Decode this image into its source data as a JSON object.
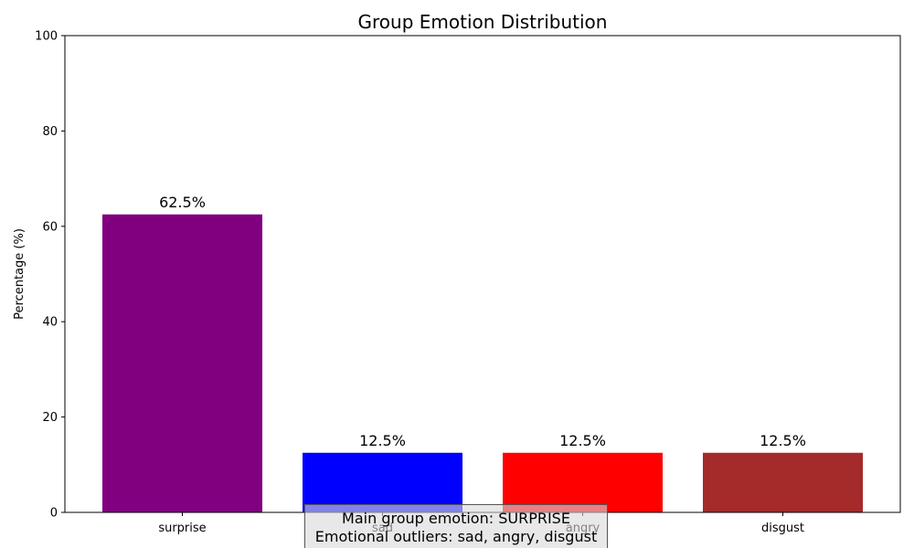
{
  "chart_data": {
    "type": "bar",
    "title": "Group Emotion Distribution",
    "xlabel": "",
    "ylabel": "Percentage (%)",
    "ylim": [
      0,
      100
    ],
    "yticks": [
      0,
      20,
      40,
      60,
      80,
      100
    ],
    "grid": false,
    "categories": [
      "surprise",
      "sad",
      "angry",
      "disgust"
    ],
    "values": [
      62.5,
      12.5,
      12.5,
      12.5
    ],
    "value_labels": [
      "62.5%",
      "12.5%",
      "12.5%",
      "12.5%"
    ],
    "colors": [
      "#800080",
      "#0000ff",
      "#ff0000",
      "#a52a2a"
    ]
  },
  "annotation": {
    "line1": "Main group emotion: SURPRISE",
    "line2": "Emotional outliers: sad, angry, disgust"
  }
}
